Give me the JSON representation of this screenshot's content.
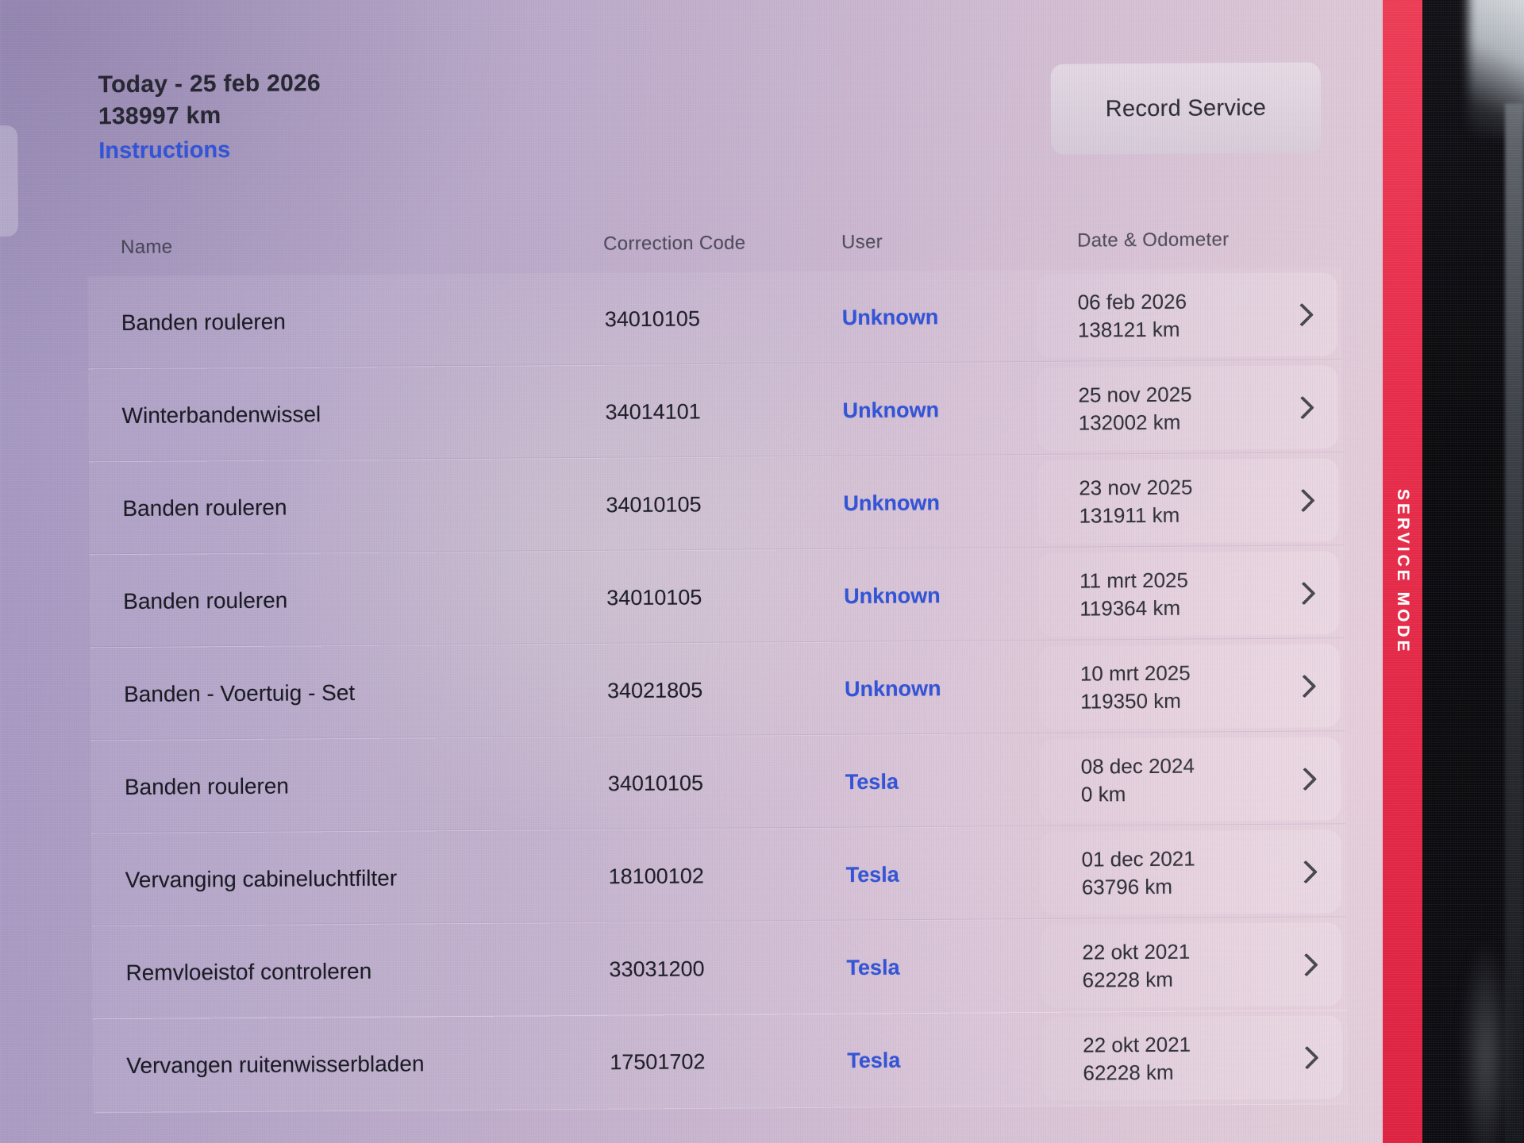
{
  "header": {
    "date_line": "Today - 25 feb 2026",
    "odometer": "138997 km",
    "instructions": "Instructions",
    "record_service": "Record Service"
  },
  "columns": {
    "name": "Name",
    "code": "Correction Code",
    "user": "User",
    "date": "Date & Odometer"
  },
  "rows": [
    {
      "name": "Banden rouleren",
      "code": "34010105",
      "user": "Unknown",
      "date": "06 feb 2026",
      "odometer": "138121 km"
    },
    {
      "name": "Winterbandenwissel",
      "code": "34014101",
      "user": "Unknown",
      "date": "25 nov 2025",
      "odometer": "132002 km"
    },
    {
      "name": "Banden rouleren",
      "code": "34010105",
      "user": "Unknown",
      "date": "23 nov 2025",
      "odometer": "131911 km"
    },
    {
      "name": "Banden rouleren",
      "code": "34010105",
      "user": "Unknown",
      "date": "11 mrt 2025",
      "odometer": "119364 km"
    },
    {
      "name": "Banden - Voertuig - Set",
      "code": "34021805",
      "user": "Unknown",
      "date": "10 mrt 2025",
      "odometer": "119350 km"
    },
    {
      "name": "Banden rouleren",
      "code": "34010105",
      "user": "Tesla",
      "date": "08 dec 2024",
      "odometer": "0 km"
    },
    {
      "name": "Vervanging cabineluchtfilter",
      "code": "18100102",
      "user": "Tesla",
      "date": "01 dec 2021",
      "odometer": "63796 km"
    },
    {
      "name": "Remvloeistof controleren",
      "code": "33031200",
      "user": "Tesla",
      "date": "22 okt 2021",
      "odometer": "62228 km"
    },
    {
      "name": "Vervangen ruitenwisserbladen",
      "code": "17501702",
      "user": "Tesla",
      "date": "22 okt 2021",
      "odometer": "62228 km"
    }
  ],
  "sidebar": {
    "service_mode": "SERVICE MODE"
  },
  "icons": {
    "row_chevron": "chevron-right"
  },
  "colors": {
    "link_blue": "#2e52d9",
    "service_mode_red": "#e82c49",
    "text_dark": "#1c1d26"
  }
}
